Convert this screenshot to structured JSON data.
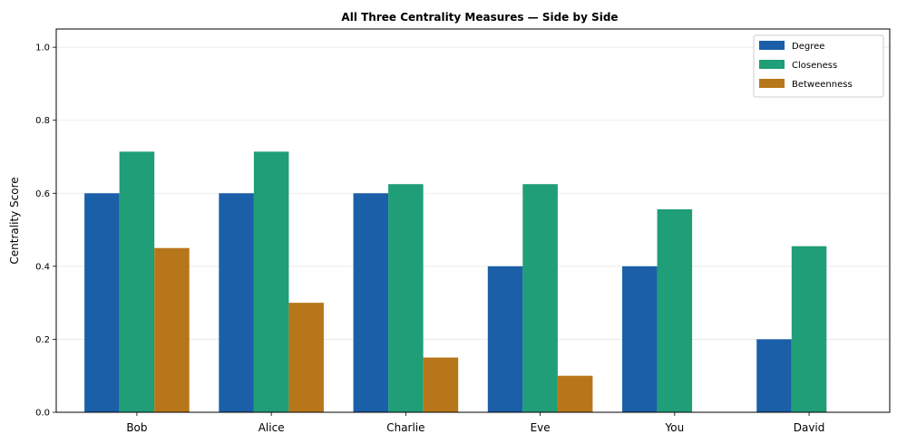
{
  "chart_data": {
    "type": "bar",
    "title": "All Three Centrality Measures — Side by Side",
    "xlabel": "",
    "ylabel": "Centrality Score",
    "categories": [
      "Bob",
      "Alice",
      "Charlie",
      "Eve",
      "You",
      "David"
    ],
    "series": [
      {
        "name": "Degree",
        "color": "#1b5fa8",
        "values": [
          0.6,
          0.6,
          0.6,
          0.4,
          0.4,
          0.2
        ]
      },
      {
        "name": "Closeness",
        "color": "#1f9e77",
        "values": [
          0.714,
          0.714,
          0.625,
          0.625,
          0.556,
          0.455
        ]
      },
      {
        "name": "Betweenness",
        "color": "#b8761a",
        "values": [
          0.45,
          0.3,
          0.15,
          0.1,
          0.0,
          0.0
        ]
      }
    ],
    "ylim": [
      0,
      1.05
    ],
    "yticks": [
      "0.0",
      "0.2",
      "0.4",
      "0.6",
      "0.8",
      "1.0"
    ],
    "grid": "horizontal",
    "legend_position": "top-right"
  }
}
